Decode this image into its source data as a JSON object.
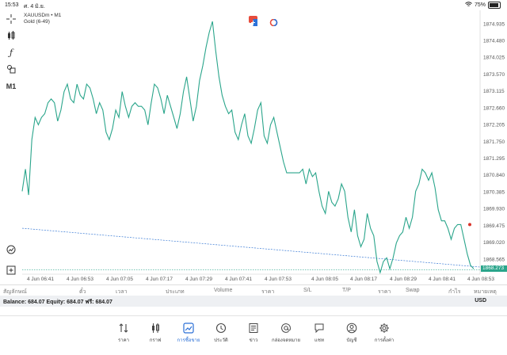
{
  "status_bar": {
    "time": "15:53",
    "date": "ศ. 4 มิ.ย.",
    "battery": "75%"
  },
  "chart": {
    "symbol_line": "XAUUSDm • M1",
    "subtitle": "Gold (6-49)",
    "timeframe_label": "M1",
    "current_price": "1868.273",
    "colors": {
      "line": "#2aa58b",
      "trendline": "#3a7bd5",
      "price_line": "#2aa58b",
      "marker": "#d9342b"
    }
  },
  "chart_data": {
    "type": "line",
    "y_ticks": [
      "1874.935",
      "1874.480",
      "1874.025",
      "1873.570",
      "1873.115",
      "1872.660",
      "1872.205",
      "1871.750",
      "1871.295",
      "1870.840",
      "1870.385",
      "1869.930",
      "1869.475",
      "1869.020",
      "1868.565"
    ],
    "x_ticks": [
      "4 Jun 06:41",
      "4 Jun 06:53",
      "4 Jun 07:05",
      "4 Jun 07:17",
      "4 Jun 07:29",
      "4 Jun 07:41",
      "4 Jun 07:53",
      "4 Jun 08:05",
      "4 Jun 08:17",
      "4 Jun 08:29",
      "4 Jun 08:41",
      "4 Jun 08:53"
    ],
    "ylim": [
      1868.2,
      1875.15
    ],
    "values": [
      1870.4,
      1871.0,
      1870.3,
      1871.8,
      1872.4,
      1872.2,
      1872.4,
      1872.5,
      1872.8,
      1872.9,
      1872.8,
      1872.3,
      1872.6,
      1873.1,
      1873.3,
      1872.9,
      1872.8,
      1873.3,
      1873.0,
      1872.9,
      1873.3,
      1873.2,
      1872.9,
      1872.5,
      1872.8,
      1872.6,
      1872.0,
      1871.8,
      1872.1,
      1872.6,
      1872.4,
      1873.1,
      1872.7,
      1872.4,
      1872.7,
      1872.8,
      1872.7,
      1872.7,
      1872.6,
      1872.2,
      1872.8,
      1873.3,
      1873.2,
      1872.9,
      1872.5,
      1873.0,
      1872.7,
      1872.4,
      1872.1,
      1872.5,
      1873.1,
      1873.5,
      1872.9,
      1872.3,
      1872.7,
      1873.4,
      1873.8,
      1874.3,
      1874.7,
      1875.0,
      1874.2,
      1873.5,
      1873.0,
      1872.7,
      1872.5,
      1872.6,
      1872.0,
      1871.8,
      1872.2,
      1872.5,
      1871.9,
      1871.7,
      1872.1,
      1872.6,
      1872.8,
      1871.9,
      1871.7,
      1872.2,
      1872.4,
      1872.0,
      1871.6,
      1871.2,
      1870.9,
      1870.9,
      1870.9,
      1870.9,
      1870.9,
      1871.0,
      1870.6,
      1871.0,
      1870.8,
      1870.9,
      1870.4,
      1870.0,
      1869.8,
      1870.4,
      1870.1,
      1870.0,
      1870.2,
      1870.6,
      1870.4,
      1869.7,
      1869.3,
      1869.9,
      1869.2,
      1868.9,
      1869.1,
      1869.8,
      1869.4,
      1869.2,
      1868.5,
      1868.2,
      1868.5,
      1868.6,
      1868.3,
      1868.6,
      1869.0,
      1869.2,
      1869.3,
      1869.7,
      1869.4,
      1869.7,
      1870.4,
      1870.6,
      1871.0,
      1870.9,
      1870.7,
      1870.9,
      1870.5,
      1869.9,
      1869.6,
      1869.6,
      1869.4,
      1869.1,
      1869.4,
      1869.5,
      1869.5,
      1869.1,
      1868.7,
      1868.4,
      1868.3
    ],
    "trendline": [
      1869.4,
      1868.35
    ],
    "current_price": 1868.273,
    "grid": false
  },
  "table_header": {
    "columns": [
      "สัญลักษณ์",
      "ตั๋ว",
      "เวลา",
      "ประเภท",
      "Volume",
      "ราคา",
      "S/L",
      "T/P",
      "ราคา",
      "Swap",
      "กำไร",
      "หมายเหตุ"
    ]
  },
  "balance_bar": {
    "text": "Balance: 684.07 Equity: 684.07 ฟรี: 684.07",
    "currency": "USD"
  },
  "nav": {
    "items": [
      "ราคา",
      "กราฟ",
      "การซื้อขาย",
      "ประวัติ",
      "ข่าว",
      "กล่องจดหมาย",
      "แชท",
      "บัญชี",
      "การตั้งค่า"
    ],
    "active_index": 2
  }
}
